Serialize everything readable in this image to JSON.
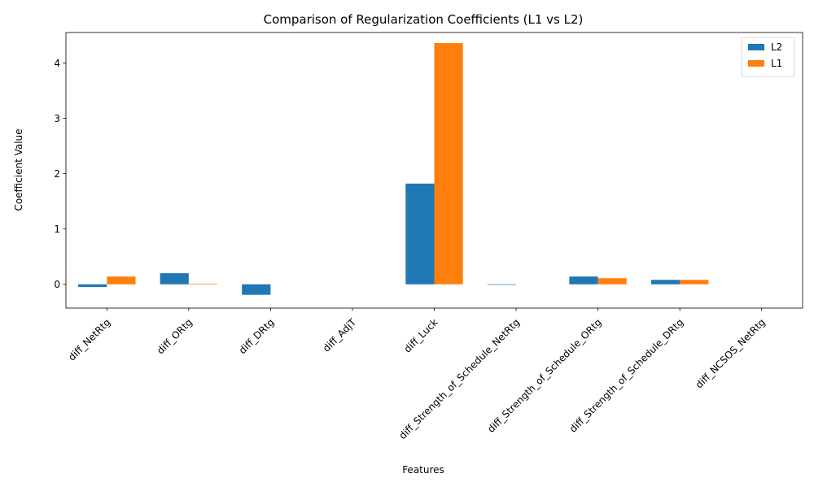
{
  "chart_data": {
    "type": "bar",
    "title": "Comparison of Regularization Coefficients (L1 vs L2)",
    "xlabel": "Features",
    "ylabel": "Coefficient Value",
    "categories": [
      "diff_NetRtg",
      "diff_ORtg",
      "diff_DRtg",
      "diff_AdjT",
      "diff_Luck",
      "diff_Strength_of_Schedule_NetRtg",
      "diff_Strength_of_Schedule_ORtg",
      "diff_Strength_of_Schedule_DRtg",
      "diff_NCSOS_NetRtg"
    ],
    "series": [
      {
        "name": "L2",
        "color": "#1f77b4",
        "values": [
          -0.05,
          0.2,
          -0.19,
          0.0,
          1.82,
          -0.01,
          0.14,
          0.08,
          0.0
        ]
      },
      {
        "name": "L1",
        "color": "#ff7f0e",
        "values": [
          0.14,
          0.01,
          0.0,
          0.0,
          4.36,
          0.0,
          0.11,
          0.08,
          0.0
        ]
      }
    ],
    "ylim": [
      -0.43,
      4.55
    ],
    "yticks": [
      "0",
      "1",
      "2",
      "3",
      "4"
    ],
    "grid": false,
    "legend": "top-right"
  }
}
